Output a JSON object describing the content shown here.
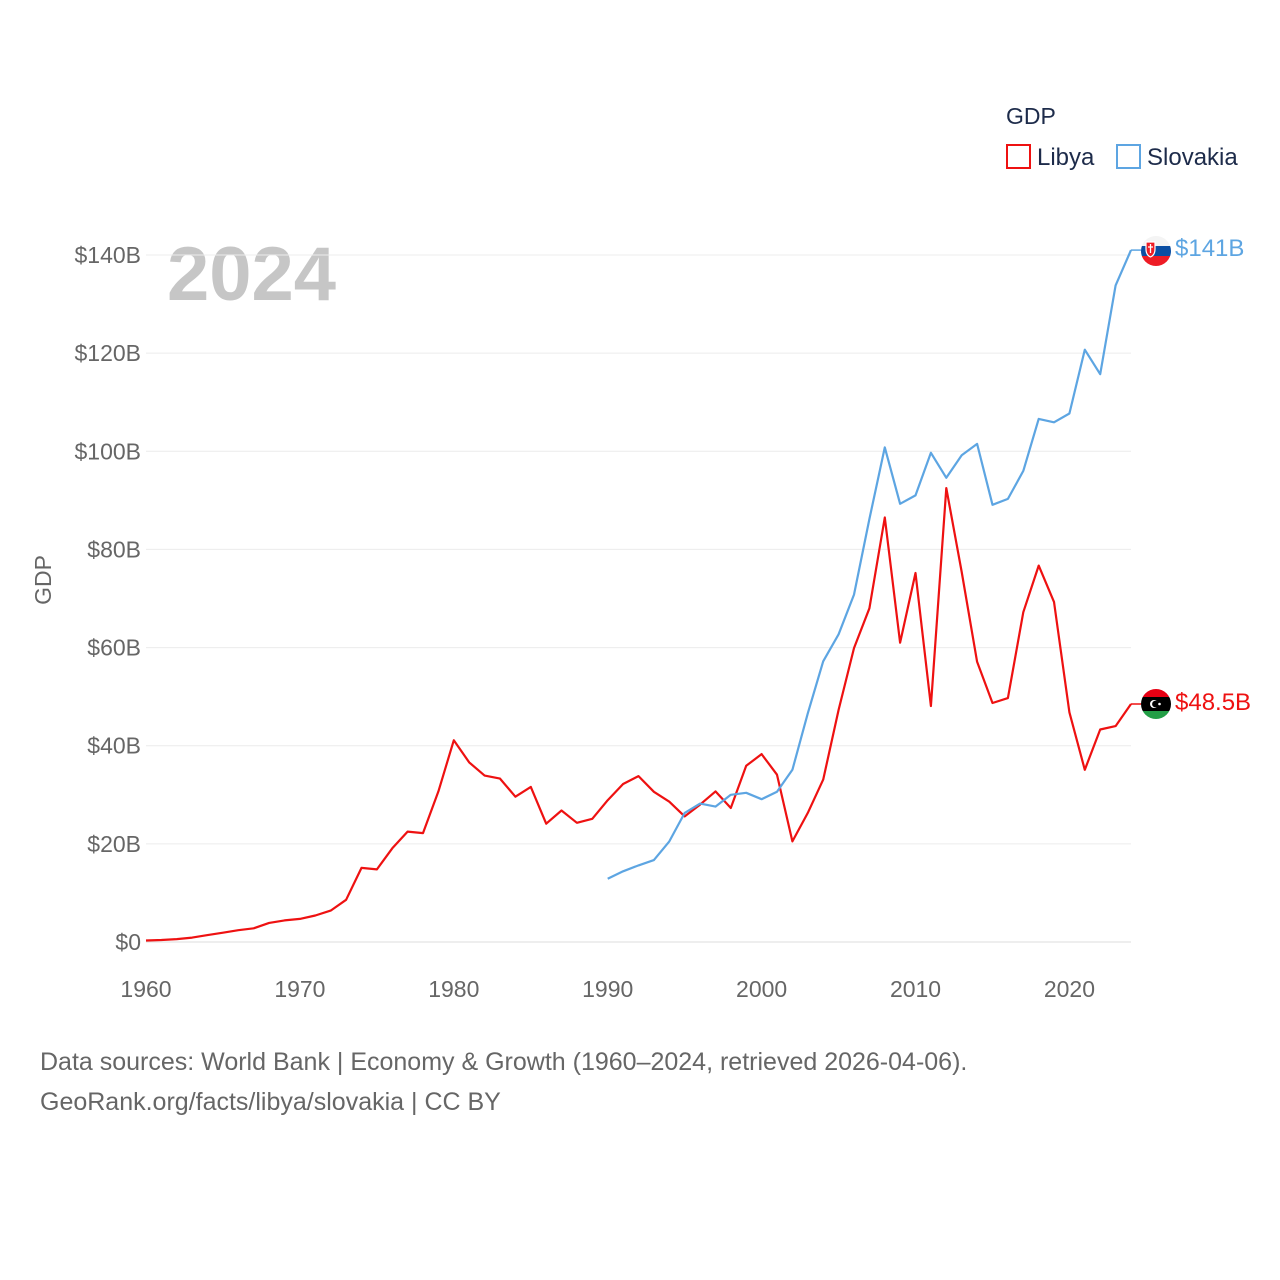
{
  "chart_data": {
    "type": "line",
    "legend_title": "GDP",
    "year_label": "2024",
    "ylabel": "GDP",
    "xlabel": "",
    "xlim": [
      1960,
      2024
    ],
    "ylim": [
      0,
      140
    ],
    "y_unit": "billion USD",
    "x_ticks": [
      "1960",
      "1970",
      "1980",
      "1990",
      "2000",
      "2010",
      "2020"
    ],
    "y_ticks": [
      "$0",
      "$20B",
      "$40B",
      "$60B",
      "$80B",
      "$100B",
      "$120B",
      "$140B"
    ],
    "y_tick_values": [
      0,
      20,
      40,
      60,
      80,
      100,
      120,
      140
    ],
    "series": [
      {
        "name": "Libya",
        "color": "#ee1111",
        "end_label": "$48.5B",
        "flag": "libya-flag",
        "x": [
          1960,
          1961,
          1962,
          1963,
          1964,
          1965,
          1966,
          1967,
          1968,
          1969,
          1970,
          1971,
          1972,
          1973,
          1974,
          1975,
          1976,
          1977,
          1978,
          1979,
          1980,
          1981,
          1982,
          1983,
          1984,
          1985,
          1986,
          1987,
          1988,
          1989,
          1990,
          1991,
          1992,
          1993,
          1994,
          1995,
          1996,
          1997,
          1998,
          1999,
          2000,
          2001,
          2002,
          2003,
          2004,
          2005,
          2006,
          2007,
          2008,
          2009,
          2010,
          2011,
          2012,
          2013,
          2014,
          2015,
          2016,
          2017,
          2018,
          2019,
          2020,
          2021,
          2022,
          2023,
          2024
        ],
        "values": [
          0.3,
          0.4,
          0.6,
          0.9,
          1.4,
          1.9,
          2.4,
          2.8,
          3.9,
          4.4,
          4.7,
          5.4,
          6.4,
          8.6,
          15.1,
          14.8,
          19.1,
          22.5,
          22.2,
          30.7,
          41.1,
          36.6,
          33.9,
          33.3,
          29.6,
          31.6,
          24.1,
          26.8,
          24.3,
          25.1,
          28.9,
          32.2,
          33.8,
          30.6,
          28.6,
          25.6,
          28.0,
          30.7,
          27.3,
          35.9,
          38.3,
          34.1,
          20.5,
          26.3,
          33.1,
          47.3,
          59.9,
          68.0,
          86.5,
          61.0,
          75.2,
          48.1,
          92.5,
          75.4,
          57.1,
          48.7,
          49.7,
          67.2,
          76.7,
          69.3,
          46.8,
          35.1,
          43.3,
          44.0,
          48.5
        ]
      },
      {
        "name": "Slovakia",
        "color": "#5da5e2",
        "end_label": "$141B",
        "flag": "slovakia-flag",
        "x": [
          1990,
          1991,
          1992,
          1993,
          1994,
          1995,
          1996,
          1997,
          1998,
          1999,
          2000,
          2001,
          2002,
          2003,
          2004,
          2005,
          2006,
          2007,
          2008,
          2009,
          2010,
          2011,
          2012,
          2013,
          2014,
          2015,
          2016,
          2017,
          2018,
          2019,
          2020,
          2021,
          2022,
          2023,
          2024
        ],
        "values": [
          12.9,
          14.4,
          15.6,
          16.7,
          20.5,
          26.3,
          28.2,
          27.6,
          30.0,
          30.4,
          29.1,
          30.6,
          35.1,
          46.6,
          57.2,
          62.7,
          70.8,
          86.2,
          100.8,
          89.3,
          91.0,
          99.7,
          94.6,
          99.2,
          101.5,
          89.1,
          90.3,
          96.0,
          106.6,
          105.9,
          107.7,
          120.7,
          115.7,
          133.8,
          141.0
        ]
      }
    ]
  },
  "footer": {
    "line1": "Data sources: World Bank | Economy & Growth (1960–2024, retrieved 2026-04-06).",
    "line2": "GeoRank.org/facts/libya/slovakia | CC BY"
  }
}
